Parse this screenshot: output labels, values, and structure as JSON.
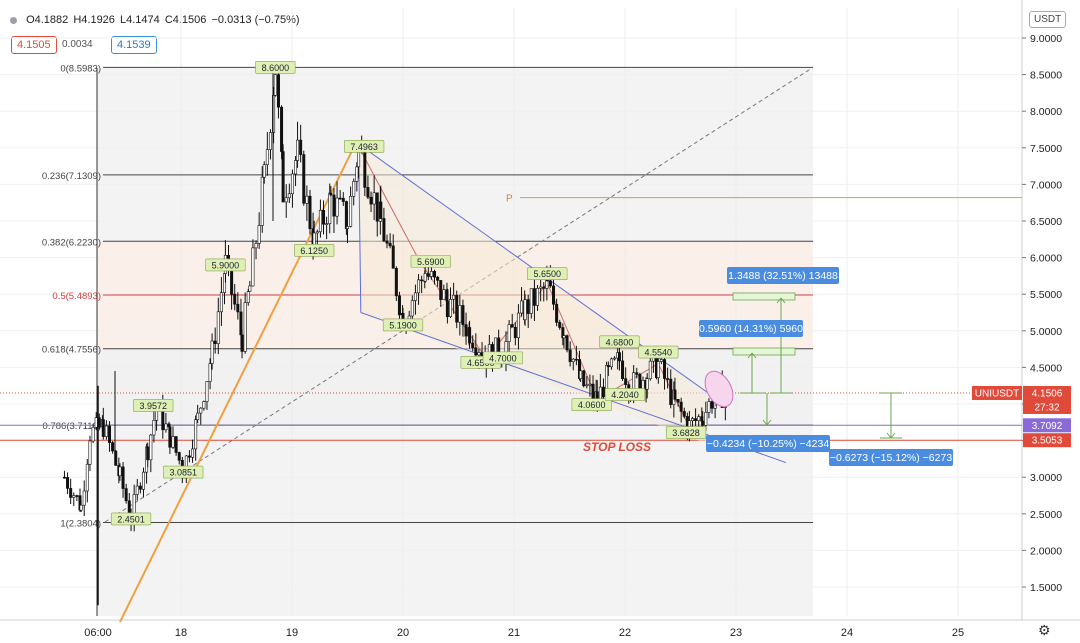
{
  "header": {
    "open": "O4.1882",
    "high": "H4.1926",
    "low": "L4.1474",
    "close": "C4.1506",
    "change": "−0.0313 (−0.75%)",
    "bid": "4.1505",
    "spread": "0.0034",
    "ask": "4.1539",
    "currency": "USDT",
    "colors": {
      "bid": "#e04a3a",
      "ask": "#2d79c2"
    }
  },
  "chart_data": {
    "type": "candlestick",
    "symbol": "UNIUSDT",
    "x_ticks": [
      "06:00",
      "18",
      "19",
      "20",
      "21",
      "22",
      "23",
      "24",
      "25"
    ],
    "y_ticks": [
      "9.0000",
      "8.5000",
      "8.0000",
      "7.5000",
      "7.0000",
      "6.5000",
      "6.0000",
      "5.5000",
      "5.0000",
      "4.5000",
      "4.0000",
      "3.5000",
      "3.0000",
      "2.5000",
      "2.0000",
      "1.5000"
    ],
    "ylim": [
      1.2,
      9.3
    ],
    "fib_levels": [
      {
        "label": "0(8.5983)",
        "value": 8.5983,
        "color": "#444444"
      },
      {
        "label": "0.236(7.1309)",
        "value": 7.1309,
        "color": "#444444"
      },
      {
        "label": "0.382(6.2230)",
        "value": 6.223,
        "color": "#444444"
      },
      {
        "label": "0.5(5.4893)",
        "value": 5.4893,
        "color": "#d04040"
      },
      {
        "label": "0.618(4.7556)",
        "value": 4.7556,
        "color": "#444444"
      },
      {
        "label": "0.786(3.7110)",
        "value": 3.711,
        "color": "#444444"
      },
      {
        "label": "1(2.3804)",
        "value": 2.3804,
        "color": "#444444"
      }
    ],
    "point_labels": [
      {
        "text": "8.6000",
        "x": 18.85,
        "y": 8.6
      },
      {
        "text": "7.4963",
        "x": 19.65,
        "y": 7.52
      },
      {
        "text": "5.9000",
        "x": 18.4,
        "y": 5.9
      },
      {
        "text": "6.1250",
        "x": 19.2,
        "y": 6.1
      },
      {
        "text": "3.9572",
        "x": 17.75,
        "y": 3.98
      },
      {
        "text": "3.0851",
        "x": 18.02,
        "y": 3.07
      },
      {
        "text": "2.4501",
        "x": 17.55,
        "y": 2.43
      },
      {
        "text": "5.1900",
        "x": 20.0,
        "y": 5.08
      },
      {
        "text": "5.6900",
        "x": 20.25,
        "y": 5.95
      },
      {
        "text": "4.6500",
        "x": 20.7,
        "y": 4.57
      },
      {
        "text": "4.7000",
        "x": 20.9,
        "y": 4.63
      },
      {
        "text": "5.6500",
        "x": 21.3,
        "y": 5.78
      },
      {
        "text": "4.0600",
        "x": 21.7,
        "y": 3.99
      },
      {
        "text": "4.6800",
        "x": 21.95,
        "y": 4.85
      },
      {
        "text": "4.2040",
        "x": 22.0,
        "y": 4.13
      },
      {
        "text": "4.5540",
        "x": 22.3,
        "y": 4.71
      },
      {
        "text": "3.6828",
        "x": 22.55,
        "y": 3.61
      }
    ],
    "p_label": "P",
    "stop_loss_label": "STOP LOSS",
    "measurements": [
      {
        "text": "1.3488 (32.51%) 13488"
      },
      {
        "text": "0.5960 (14.31%) 5960"
      },
      {
        "text": "−0.4234 (−10.25%) −4234"
      },
      {
        "text": "−0.6273 (−15.12%) −6273"
      }
    ],
    "price_tags": [
      {
        "text": "UNIUSDT",
        "value": 4.1506,
        "color": "#e04a3a"
      },
      {
        "text": "4.1506",
        "value": 4.1506,
        "color": "#e04a3a"
      },
      {
        "text": "27:32",
        "value": 4.1506,
        "color": "#e04a3a"
      },
      {
        "text": "3.7092",
        "value": 3.7092,
        "color": "#8a6ad8"
      },
      {
        "text": "3.5053",
        "value": 3.5053,
        "color": "#e04a3a"
      }
    ],
    "anchors": [
      [
        16.95,
        3.0
      ],
      [
        17.1,
        2.6
      ],
      [
        17.18,
        3.6
      ],
      [
        17.3,
        3.7
      ],
      [
        17.45,
        3.0
      ],
      [
        17.55,
        2.45
      ],
      [
        17.7,
        3.4
      ],
      [
        17.78,
        3.96
      ],
      [
        17.9,
        3.55
      ],
      [
        18.02,
        3.1
      ],
      [
        18.15,
        3.8
      ],
      [
        18.28,
        4.7
      ],
      [
        18.4,
        5.9
      ],
      [
        18.55,
        4.9
      ],
      [
        18.62,
        5.6
      ],
      [
        18.75,
        7.1
      ],
      [
        18.85,
        8.6
      ],
      [
        18.92,
        6.9
      ],
      [
        19.05,
        7.4
      ],
      [
        19.2,
        6.2
      ],
      [
        19.35,
        6.8
      ],
      [
        19.5,
        6.5
      ],
      [
        19.6,
        7.5
      ],
      [
        19.8,
        6.5
      ],
      [
        20.0,
        5.2
      ],
      [
        20.2,
        5.8
      ],
      [
        20.4,
        5.4
      ],
      [
        20.6,
        5.0
      ],
      [
        20.75,
        4.65
      ],
      [
        20.9,
        4.75
      ],
      [
        21.1,
        5.3
      ],
      [
        21.3,
        5.6
      ],
      [
        21.45,
        5.0
      ],
      [
        21.6,
        4.3
      ],
      [
        21.75,
        4.06
      ],
      [
        21.85,
        4.4
      ],
      [
        21.95,
        4.6
      ],
      [
        22.05,
        4.25
      ],
      [
        22.2,
        4.4
      ],
      [
        22.3,
        4.55
      ],
      [
        22.45,
        4.0
      ],
      [
        22.58,
        3.7
      ],
      [
        22.7,
        3.85
      ],
      [
        22.82,
        4.15
      ],
      [
        22.95,
        4.1
      ]
    ]
  }
}
